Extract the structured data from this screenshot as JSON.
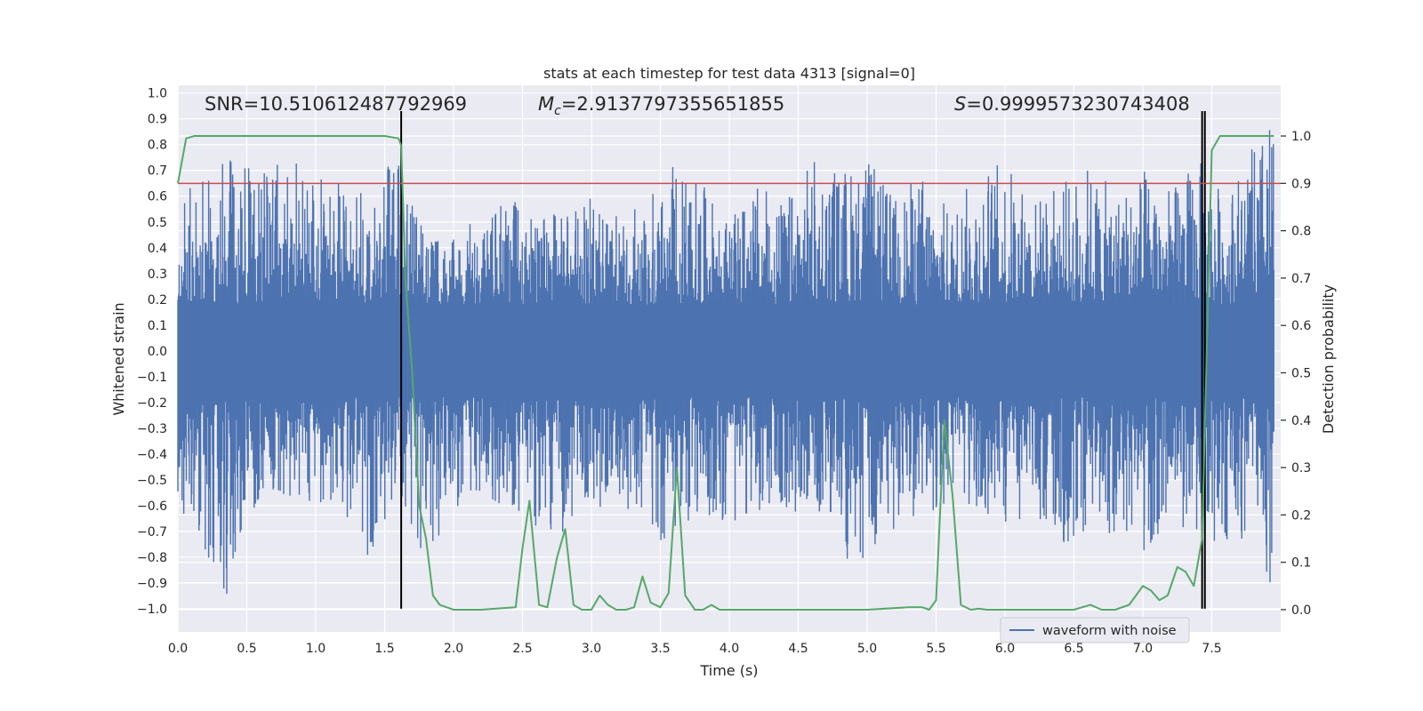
{
  "chart_data": {
    "type": "line",
    "title": "stats at each timestep for test data 4313 [signal=0]",
    "xlabel": "Time (s)",
    "ylabel_left": "Whitened strain",
    "ylabel_right": "Detection probability",
    "xlim": [
      0.0,
      8.0
    ],
    "ylim_left": [
      -1.09,
      1.03
    ],
    "ylim_right": [
      -0.047,
      1.107
    ],
    "x_ticks": [
      "0.0",
      "0.5",
      "1.0",
      "1.5",
      "2.0",
      "2.5",
      "3.0",
      "3.5",
      "4.0",
      "4.5",
      "5.0",
      "5.5",
      "6.0",
      "6.5",
      "7.0",
      "7.5"
    ],
    "y_left_ticks": [
      "1.0",
      "0.9",
      "0.8",
      "0.7",
      "0.6",
      "0.5",
      "0.4",
      "0.3",
      "0.2",
      "0.1",
      "0.0",
      "−0.1",
      "−0.2",
      "−0.3",
      "−0.4",
      "−0.5",
      "−0.6",
      "−0.7",
      "−0.8",
      "−0.9",
      "−1.0"
    ],
    "y_right_ticks": [
      "1.0",
      "0.9",
      "0.8",
      "0.7",
      "0.6",
      "0.5",
      "0.4",
      "0.3",
      "0.2",
      "0.1",
      "0.0"
    ],
    "grid": true,
    "legend_position": "lower-right",
    "annotations": {
      "snr": "SNR=10.510612487792969",
      "mc_symbol": "M",
      "mc_sub": "c",
      "mc_value": "=2.9137797355651855",
      "s_symbol": "S",
      "s_value": "=0.9999573230743408"
    },
    "threshold_right_axis": 0.9,
    "vertical_lines_x": [
      1.62,
      7.43,
      7.45
    ],
    "series": [
      {
        "name": "waveform with noise",
        "color": "#4c72b0",
        "envelope": {
          "x": [
            0.0,
            0.2,
            0.4,
            0.6,
            0.8,
            1.0,
            1.2,
            1.4,
            1.6,
            1.8,
            2.0,
            2.2,
            2.4,
            2.6,
            2.8,
            3.0,
            3.2,
            3.4,
            3.6,
            3.8,
            4.0,
            4.2,
            4.4,
            4.6,
            4.8,
            5.0,
            5.2,
            5.4,
            5.6,
            5.8,
            6.0,
            6.2,
            6.4,
            6.6,
            6.8,
            7.0,
            7.2,
            7.4,
            7.6,
            7.8,
            7.95
          ],
          "max": [
            0.6,
            0.7,
            0.75,
            0.73,
            0.75,
            0.68,
            0.65,
            0.62,
            0.82,
            0.42,
            0.45,
            0.53,
            0.62,
            0.5,
            0.55,
            0.6,
            0.55,
            0.62,
            0.72,
            0.65,
            0.5,
            0.65,
            0.58,
            0.75,
            0.72,
            0.75,
            0.6,
            0.7,
            0.55,
            0.7,
            0.75,
            0.6,
            0.65,
            0.73,
            0.62,
            0.72,
            0.63,
            0.75,
            0.62,
            0.79,
            0.92
          ],
          "min": [
            -0.6,
            -0.78,
            -1.0,
            -0.55,
            -0.6,
            -0.58,
            -0.62,
            -0.83,
            -0.55,
            -0.82,
            -0.62,
            -0.58,
            -0.6,
            -0.68,
            -0.72,
            -0.62,
            -0.58,
            -0.72,
            -0.75,
            -0.62,
            -0.7,
            -0.62,
            -0.7,
            -0.58,
            -0.78,
            -0.93,
            -0.7,
            -0.65,
            -0.6,
            -0.68,
            -0.7,
            -0.62,
            -0.8,
            -0.7,
            -0.75,
            -0.78,
            -0.68,
            -0.72,
            -0.75,
            -0.72,
            -0.98
          ]
        }
      },
      {
        "name": "",
        "color": "#55a868",
        "axis": "right",
        "x": [
          0.0,
          0.06,
          0.12,
          0.25,
          0.5,
          0.75,
          1.0,
          1.25,
          1.5,
          1.6,
          1.62,
          1.65,
          1.7,
          1.75,
          1.8,
          1.85,
          1.9,
          2.0,
          2.2,
          2.45,
          2.5,
          2.55,
          2.62,
          2.68,
          2.75,
          2.81,
          2.87,
          2.93,
          3.0,
          3.06,
          3.12,
          3.18,
          3.25,
          3.31,
          3.37,
          3.43,
          3.5,
          3.56,
          3.62,
          3.68,
          3.75,
          3.81,
          3.87,
          3.93,
          4.0,
          4.5,
          5.0,
          5.3,
          5.4,
          5.45,
          5.5,
          5.56,
          5.62,
          5.68,
          5.75,
          5.81,
          5.87,
          6.0,
          6.5,
          6.62,
          6.7,
          6.8,
          6.9,
          6.95,
          7.0,
          7.06,
          7.12,
          7.18,
          7.25,
          7.31,
          7.37,
          7.43,
          7.5,
          7.56,
          7.62,
          7.7,
          7.95
        ],
        "y": [
          0.9,
          0.995,
          1.0,
          1.0,
          1.0,
          1.0,
          1.0,
          1.0,
          1.0,
          0.995,
          0.98,
          0.7,
          0.5,
          0.22,
          0.15,
          0.03,
          0.01,
          0.0,
          0.0,
          0.005,
          0.13,
          0.23,
          0.01,
          0.005,
          0.11,
          0.17,
          0.01,
          0.0,
          0.0,
          0.03,
          0.01,
          0.0,
          0.0,
          0.005,
          0.07,
          0.015,
          0.005,
          0.035,
          0.3,
          0.03,
          0.0,
          0.0,
          0.01,
          0.0,
          0.0,
          0.0,
          0.0,
          0.005,
          0.005,
          0.0,
          0.02,
          0.4,
          0.24,
          0.01,
          0.0,
          0.002,
          0.0,
          0.0,
          0.0,
          0.01,
          0.0,
          0.0,
          0.01,
          0.03,
          0.05,
          0.04,
          0.02,
          0.03,
          0.09,
          0.08,
          0.05,
          0.15,
          0.97,
          1.0,
          1.0,
          1.0,
          1.0
        ]
      }
    ]
  },
  "colors": {
    "background": "#eaeaf2",
    "grid": "#ffffff",
    "waveform": "#4c72b0",
    "probability": "#55a868",
    "threshold": "#c44e52",
    "vline": "#000000"
  }
}
